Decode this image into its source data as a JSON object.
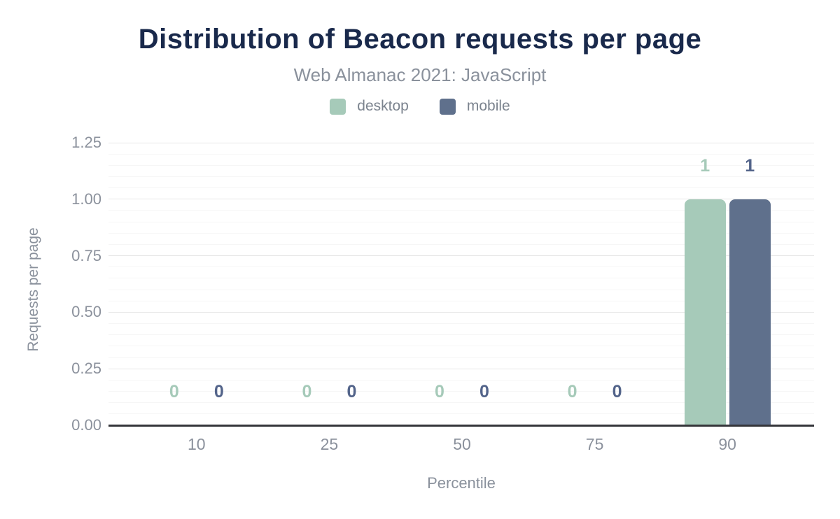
{
  "header": {
    "title": "Distribution of Beacon requests per page",
    "subtitle": "Web Almanac 2021: JavaScript"
  },
  "chart_data": {
    "type": "bar",
    "title": "Distribution of Beacon requests per page",
    "subtitle": "Web Almanac 2021: JavaScript",
    "categories": [
      "10",
      "25",
      "50",
      "75",
      "90"
    ],
    "series": [
      {
        "name": "desktop",
        "color": "#a6cab9",
        "label_color": "#a6cab9",
        "values": [
          0,
          0,
          0,
          0,
          1
        ],
        "value_labels": [
          "0",
          "0",
          "0",
          "0",
          "1"
        ]
      },
      {
        "name": "mobile",
        "color": "#5f708c",
        "label_color": "#53648a",
        "values": [
          0,
          0,
          0,
          0,
          1
        ],
        "value_labels": [
          "0",
          "0",
          "0",
          "0",
          "1"
        ]
      }
    ],
    "xlabel": "Percentile",
    "ylabel": "Requests per page",
    "ylim": [
      0,
      1.25
    ],
    "y_major_step": 0.25,
    "y_minor_step": 0.05,
    "y_tick_labels": [
      "0.00",
      "0.25",
      "0.50",
      "0.75",
      "1.00",
      "1.25"
    ],
    "grid": true,
    "legend_position": "top",
    "data_labels_shown": true
  },
  "colors": {
    "title": "#19294b",
    "muted_text": "#8a919c",
    "legend_text": "#7b838e",
    "axis_line": "#35363a",
    "grid_major": "#e7e7e7",
    "grid_minor": "#f6f6f6",
    "background": "#ffffff"
  }
}
